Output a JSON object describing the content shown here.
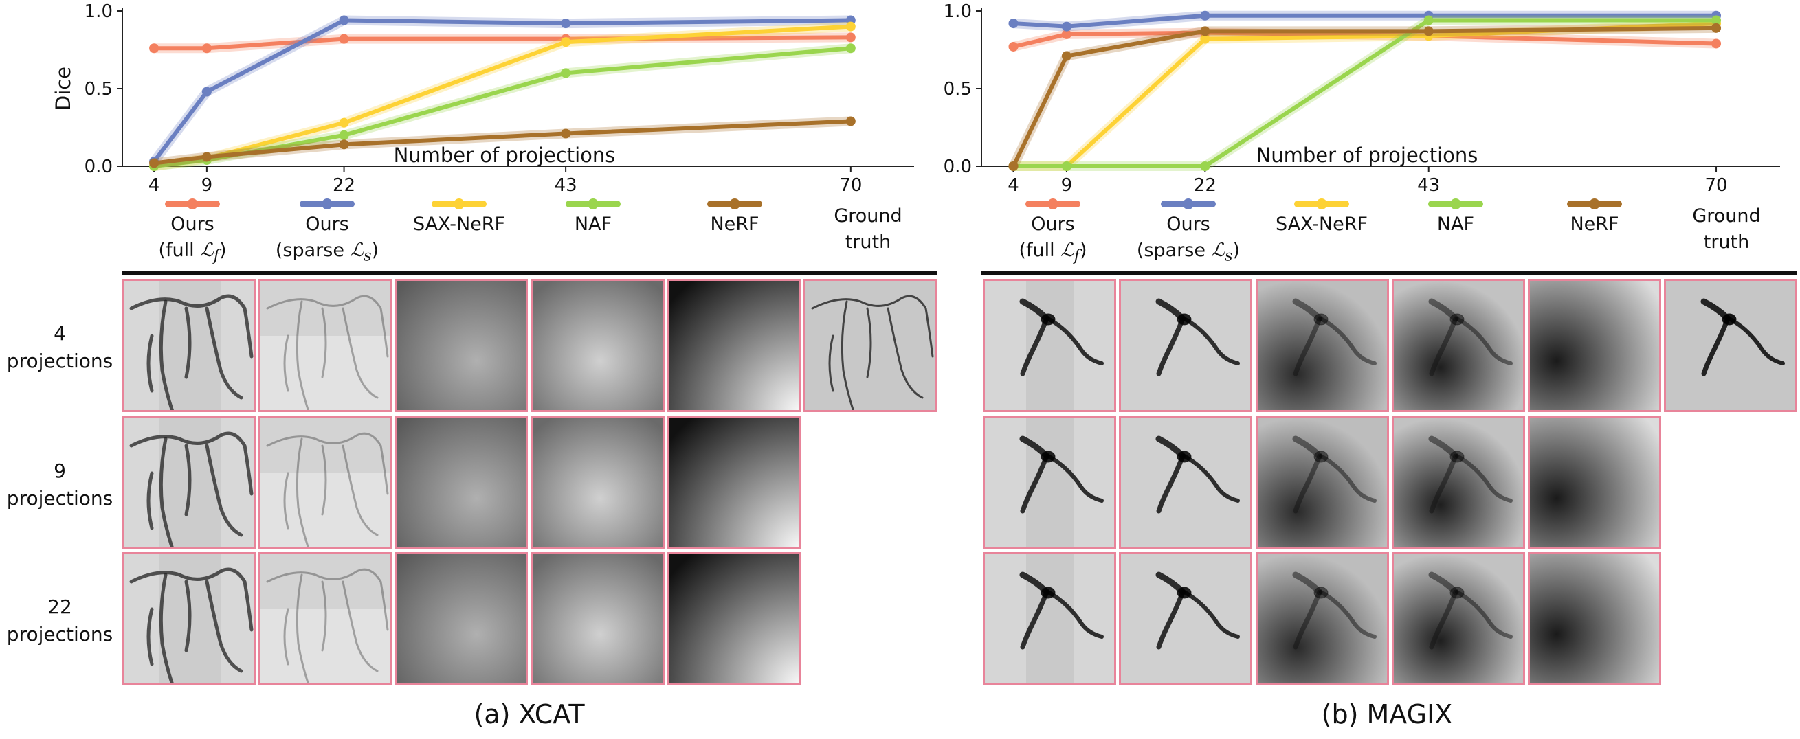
{
  "chart_data": [
    {
      "type": "line",
      "panel": "(a) XCAT",
      "xlabel": "Number of projections",
      "ylabel": "Dice",
      "x": [
        4,
        9,
        22,
        43,
        70
      ],
      "xlim": [
        1,
        76
      ],
      "ylim": [
        0,
        1
      ],
      "yticks": [
        "0.0",
        "0.5",
        "1.0"
      ],
      "series": [
        {
          "name": "Ours (full L_f)",
          "color": "#f4805f",
          "values": [
            0.76,
            0.76,
            0.82,
            0.82,
            0.83
          ]
        },
        {
          "name": "Ours (sparse L_s)",
          "color": "#6a7fc1",
          "values": [
            0.03,
            0.48,
            0.94,
            0.92,
            0.94
          ]
        },
        {
          "name": "SAX-NeRF",
          "color": "#fdd235",
          "values": [
            0.0,
            0.05,
            0.28,
            0.8,
            0.9
          ]
        },
        {
          "name": "NAF",
          "color": "#9ad54e",
          "values": [
            0.0,
            0.04,
            0.2,
            0.6,
            0.76
          ]
        },
        {
          "name": "NeRF",
          "color": "#a8712a",
          "values": [
            0.02,
            0.06,
            0.14,
            0.21,
            0.29
          ]
        }
      ]
    },
    {
      "type": "line",
      "panel": "(b) MAGIX",
      "xlabel": "Number of projections",
      "ylabel": "",
      "x": [
        4,
        9,
        22,
        43,
        70
      ],
      "xlim": [
        1,
        76
      ],
      "ylim": [
        0,
        1
      ],
      "yticks": [
        "0.0",
        "0.5",
        "1.0"
      ],
      "series": [
        {
          "name": "Ours (full L_f)",
          "color": "#f4805f",
          "values": [
            0.77,
            0.85,
            0.86,
            0.84,
            0.79
          ]
        },
        {
          "name": "Ours (sparse L_s)",
          "color": "#6a7fc1",
          "values": [
            0.92,
            0.9,
            0.97,
            0.97,
            0.97
          ]
        },
        {
          "name": "SAX-NeRF",
          "color": "#fdd235",
          "values": [
            0.0,
            0.0,
            0.82,
            0.84,
            0.92
          ]
        },
        {
          "name": "NAF",
          "color": "#9ad54e",
          "values": [
            0.0,
            0.0,
            0.0,
            0.94,
            0.94
          ]
        },
        {
          "name": "NeRF",
          "color": "#a8712a",
          "values": [
            0.0,
            0.71,
            0.87,
            0.87,
            0.89
          ]
        }
      ]
    }
  ],
  "legend": {
    "items": [
      {
        "line1": "Ours",
        "line2_prefix": "(full ",
        "line2_symbol": "ℒ",
        "line2_sub": "f",
        "line2_suffix": ")",
        "color": "#f4805f"
      },
      {
        "line1": "Ours",
        "line2_prefix": "(sparse ",
        "line2_symbol": "ℒ",
        "line2_sub": "s",
        "line2_suffix": ")",
        "color": "#6a7fc1"
      },
      {
        "line1": "SAX-NeRF",
        "color": "#fdd235"
      },
      {
        "line1": "NAF",
        "color": "#9ad54e"
      },
      {
        "line1": "NeRF",
        "color": "#a8712a"
      },
      {
        "line1": "Ground",
        "line2": "truth"
      }
    ]
  },
  "rows": [
    {
      "line1": "4",
      "line2": "projections"
    },
    {
      "line1": "9",
      "line2": "projections"
    },
    {
      "line1": "22",
      "line2": "projections"
    }
  ],
  "captions": {
    "a": "(a) XCAT",
    "b": "(b) MAGIX"
  }
}
